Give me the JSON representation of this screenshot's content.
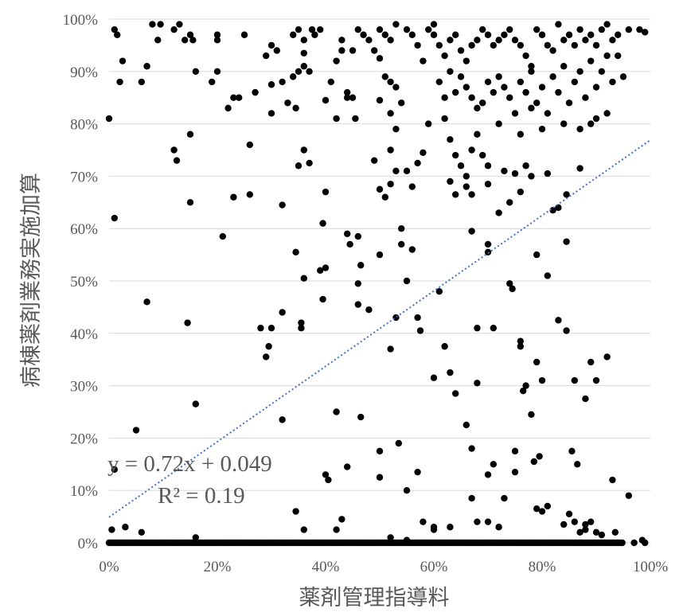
{
  "chart_data": {
    "type": "scatter",
    "xlabel": "薬剤管理指導料",
    "ylabel": "病棟薬剤業務実施加算",
    "xlim": [
      0,
      1
    ],
    "ylim": [
      0,
      1
    ],
    "x_ticks": [
      "0%",
      "20%",
      "40%",
      "60%",
      "80%",
      "100%"
    ],
    "y_ticks": [
      "0%",
      "10%",
      "20%",
      "30%",
      "40%",
      "50%",
      "60%",
      "70%",
      "80%",
      "90%",
      "100%"
    ],
    "grid": "horizontal",
    "colors": {
      "points": "#000000",
      "trendline": "#4472c4",
      "gridline": "#d9d9d9",
      "text": "#595959"
    },
    "trendline": {
      "slope": 0.72,
      "intercept": 0.049,
      "equation": "y = 0.72x + 0.049",
      "r2": "R² = 0.19"
    },
    "points": [
      [
        0.01,
        0.98
      ],
      [
        0.015,
        0.97
      ],
      [
        0.02,
        0.88
      ],
      [
        0.025,
        0.92
      ],
      [
        0.0,
        0.81
      ],
      [
        0.01,
        0.62
      ],
      [
        0.06,
        0.88
      ],
      [
        0.07,
        0.91
      ],
      [
        0.08,
        0.99
      ],
      [
        0.09,
        0.96
      ],
      [
        0.095,
        0.99
      ],
      [
        0.12,
        0.98
      ],
      [
        0.13,
        0.99
      ],
      [
        0.14,
        0.96
      ],
      [
        0.15,
        0.97
      ],
      [
        0.155,
        0.96
      ],
      [
        0.16,
        0.9
      ],
      [
        0.12,
        0.75
      ],
      [
        0.125,
        0.73
      ],
      [
        0.15,
        0.78
      ],
      [
        0.15,
        0.65
      ],
      [
        0.145,
        0.42
      ],
      [
        0.16,
        0.265
      ],
      [
        0.07,
        0.46
      ],
      [
        0.05,
        0.215
      ],
      [
        0.01,
        0.14
      ],
      [
        0.03,
        0.03
      ],
      [
        0.06,
        0.02
      ],
      [
        0.005,
        0.025
      ],
      [
        0.16,
        0.01
      ],
      [
        0.19,
        0.88
      ],
      [
        0.2,
        0.9
      ],
      [
        0.2,
        0.96
      ],
      [
        0.2,
        0.97
      ],
      [
        0.22,
        0.83
      ],
      [
        0.23,
        0.85
      ],
      [
        0.24,
        0.85
      ],
      [
        0.25,
        0.97
      ],
      [
        0.26,
        0.76
      ],
      [
        0.26,
        0.665
      ],
      [
        0.23,
        0.66
      ],
      [
        0.21,
        0.585
      ],
      [
        0.27,
        0.86
      ],
      [
        0.29,
        0.93
      ],
      [
        0.3,
        0.95
      ],
      [
        0.31,
        0.94
      ],
      [
        0.3,
        0.875
      ],
      [
        0.3,
        0.82
      ],
      [
        0.32,
        0.88
      ],
      [
        0.33,
        0.84
      ],
      [
        0.34,
        0.89
      ],
      [
        0.345,
        0.83
      ],
      [
        0.35,
        0.9
      ],
      [
        0.36,
        0.935
      ],
      [
        0.36,
        0.91
      ],
      [
        0.37,
        0.9
      ],
      [
        0.375,
        0.98
      ],
      [
        0.38,
        0.97
      ],
      [
        0.39,
        0.98
      ],
      [
        0.34,
        0.97
      ],
      [
        0.35,
        0.98
      ],
      [
        0.36,
        0.96
      ],
      [
        0.36,
        0.75
      ],
      [
        0.37,
        0.725
      ],
      [
        0.35,
        0.72
      ],
      [
        0.32,
        0.645
      ],
      [
        0.345,
        0.555
      ],
      [
        0.36,
        0.505
      ],
      [
        0.355,
        0.42
      ],
      [
        0.355,
        0.41
      ],
      [
        0.28,
        0.41
      ],
      [
        0.3,
        0.41
      ],
      [
        0.295,
        0.375
      ],
      [
        0.29,
        0.355
      ],
      [
        0.32,
        0.44
      ],
      [
        0.32,
        0.235
      ],
      [
        0.345,
        0.06
      ],
      [
        0.36,
        0.025
      ],
      [
        0.39,
        0.52
      ],
      [
        0.4,
        0.525
      ],
      [
        0.395,
        0.465
      ],
      [
        0.4,
        0.67
      ],
      [
        0.395,
        0.61
      ],
      [
        0.4,
        0.845
      ],
      [
        0.41,
        0.88
      ],
      [
        0.42,
        0.92
      ],
      [
        0.42,
        0.81
      ],
      [
        0.43,
        0.96
      ],
      [
        0.44,
        0.86
      ],
      [
        0.44,
        0.85
      ],
      [
        0.45,
        0.85
      ],
      [
        0.455,
        0.81
      ],
      [
        0.46,
        0.98
      ],
      [
        0.47,
        0.97
      ],
      [
        0.48,
        0.96
      ],
      [
        0.49,
        0.94
      ],
      [
        0.43,
        0.94
      ],
      [
        0.45,
        0.94
      ],
      [
        0.44,
        0.59
      ],
      [
        0.445,
        0.57
      ],
      [
        0.46,
        0.585
      ],
      [
        0.46,
        0.495
      ],
      [
        0.465,
        0.53
      ],
      [
        0.46,
        0.455
      ],
      [
        0.48,
        0.445
      ],
      [
        0.4,
        0.13
      ],
      [
        0.405,
        0.12
      ],
      [
        0.42,
        0.25
      ],
      [
        0.43,
        0.045
      ],
      [
        0.42,
        0.025
      ],
      [
        0.44,
        0.145
      ],
      [
        0.465,
        0.24
      ],
      [
        0.5,
        0.98
      ],
      [
        0.51,
        0.97
      ],
      [
        0.52,
        0.96
      ],
      [
        0.5,
        0.925
      ],
      [
        0.51,
        0.89
      ],
      [
        0.52,
        0.88
      ],
      [
        0.53,
        0.87
      ],
      [
        0.5,
        0.845
      ],
      [
        0.54,
        0.84
      ],
      [
        0.52,
        0.82
      ],
      [
        0.53,
        0.99
      ],
      [
        0.55,
        0.98
      ],
      [
        0.56,
        0.97
      ],
      [
        0.57,
        0.95
      ],
      [
        0.58,
        0.92
      ],
      [
        0.59,
        0.98
      ],
      [
        0.6,
        0.97
      ],
      [
        0.6,
        0.99
      ],
      [
        0.49,
        0.73
      ],
      [
        0.5,
        0.675
      ],
      [
        0.51,
        0.66
      ],
      [
        0.52,
        0.685
      ],
      [
        0.52,
        0.75
      ],
      [
        0.53,
        0.71
      ],
      [
        0.55,
        0.71
      ],
      [
        0.56,
        0.68
      ],
      [
        0.57,
        0.725
      ],
      [
        0.58,
        0.745
      ],
      [
        0.59,
        0.8
      ],
      [
        0.53,
        0.79
      ],
      [
        0.5,
        0.55
      ],
      [
        0.54,
        0.6
      ],
      [
        0.54,
        0.57
      ],
      [
        0.55,
        0.5
      ],
      [
        0.53,
        0.43
      ],
      [
        0.52,
        0.37
      ],
      [
        0.56,
        0.56
      ],
      [
        0.57,
        0.43
      ],
      [
        0.575,
        0.405
      ],
      [
        0.6,
        0.315
      ],
      [
        0.61,
        0.48
      ],
      [
        0.62,
        0.375
      ],
      [
        0.5,
        0.175
      ],
      [
        0.5,
        0.125
      ],
      [
        0.535,
        0.19
      ],
      [
        0.55,
        0.1
      ],
      [
        0.57,
        0.135
      ],
      [
        0.58,
        0.04
      ],
      [
        0.6,
        0.03
      ],
      [
        0.6,
        0.025
      ],
      [
        0.52,
        0.01
      ],
      [
        0.55,
        0.005
      ],
      [
        0.63,
        0.03
      ],
      [
        0.61,
        0.95
      ],
      [
        0.62,
        0.93
      ],
      [
        0.63,
        0.96
      ],
      [
        0.64,
        0.97
      ],
      [
        0.65,
        0.94
      ],
      [
        0.66,
        0.92
      ],
      [
        0.67,
        0.95
      ],
      [
        0.68,
        0.96
      ],
      [
        0.69,
        0.98
      ],
      [
        0.7,
        0.97
      ],
      [
        0.71,
        0.95
      ],
      [
        0.72,
        0.96
      ],
      [
        0.73,
        0.97
      ],
      [
        0.74,
        0.98
      ],
      [
        0.75,
        0.96
      ],
      [
        0.61,
        0.88
      ],
      [
        0.62,
        0.85
      ],
      [
        0.63,
        0.9
      ],
      [
        0.64,
        0.86
      ],
      [
        0.65,
        0.89
      ],
      [
        0.66,
        0.87
      ],
      [
        0.67,
        0.85
      ],
      [
        0.68,
        0.83
      ],
      [
        0.69,
        0.84
      ],
      [
        0.7,
        0.88
      ],
      [
        0.71,
        0.86
      ],
      [
        0.72,
        0.89
      ],
      [
        0.73,
        0.87
      ],
      [
        0.74,
        0.85
      ],
      [
        0.75,
        0.82
      ],
      [
        0.62,
        0.81
      ],
      [
        0.63,
        0.77
      ],
      [
        0.64,
        0.74
      ],
      [
        0.65,
        0.72
      ],
      [
        0.66,
        0.7
      ],
      [
        0.67,
        0.75
      ],
      [
        0.68,
        0.78
      ],
      [
        0.69,
        0.74
      ],
      [
        0.7,
        0.72
      ],
      [
        0.72,
        0.8
      ],
      [
        0.73,
        0.71
      ],
      [
        0.75,
        0.705
      ],
      [
        0.77,
        0.72
      ],
      [
        0.78,
        0.7
      ],
      [
        0.76,
        0.78
      ],
      [
        0.63,
        0.69
      ],
      [
        0.64,
        0.665
      ],
      [
        0.66,
        0.68
      ],
      [
        0.67,
        0.665
      ],
      [
        0.7,
        0.685
      ],
      [
        0.72,
        0.63
      ],
      [
        0.74,
        0.65
      ],
      [
        0.76,
        0.67
      ],
      [
        0.67,
        0.595
      ],
      [
        0.7,
        0.555
      ],
      [
        0.7,
        0.57
      ],
      [
        0.63,
        0.325
      ],
      [
        0.64,
        0.285
      ],
      [
        0.68,
        0.305
      ],
      [
        0.68,
        0.41
      ],
      [
        0.71,
        0.41
      ],
      [
        0.74,
        0.495
      ],
      [
        0.745,
        0.485
      ],
      [
        0.76,
        0.385
      ],
      [
        0.76,
        0.375
      ],
      [
        0.77,
        0.3
      ],
      [
        0.765,
        0.29
      ],
      [
        0.79,
        0.345
      ],
      [
        0.79,
        0.55
      ],
      [
        0.8,
        0.31
      ],
      [
        0.81,
        0.51
      ],
      [
        0.66,
        0.225
      ],
      [
        0.67,
        0.18
      ],
      [
        0.7,
        0.13
      ],
      [
        0.71,
        0.15
      ],
      [
        0.73,
        0.085
      ],
      [
        0.75,
        0.135
      ],
      [
        0.75,
        0.175
      ],
      [
        0.78,
        0.245
      ],
      [
        0.785,
        0.155
      ],
      [
        0.795,
        0.165
      ],
      [
        0.81,
        0.07
      ],
      [
        0.8,
        0.06
      ],
      [
        0.68,
        0.04
      ],
      [
        0.7,
        0.04
      ],
      [
        0.72,
        0.03
      ],
      [
        0.67,
        0.085
      ],
      [
        0.79,
        0.065
      ],
      [
        0.76,
        0.95
      ],
      [
        0.77,
        0.93
      ],
      [
        0.78,
        0.91
      ],
      [
        0.79,
        0.98
      ],
      [
        0.8,
        0.97
      ],
      [
        0.81,
        0.95
      ],
      [
        0.82,
        0.94
      ],
      [
        0.83,
        0.99
      ],
      [
        0.84,
        0.96
      ],
      [
        0.85,
        0.97
      ],
      [
        0.86,
        0.95
      ],
      [
        0.87,
        0.98
      ],
      [
        0.88,
        0.96
      ],
      [
        0.89,
        0.97
      ],
      [
        0.9,
        0.95
      ],
      [
        0.91,
        0.98
      ],
      [
        0.92,
        0.99
      ],
      [
        0.93,
        0.96
      ],
      [
        0.94,
        0.97
      ],
      [
        0.96,
        0.98
      ],
      [
        0.98,
        0.98
      ],
      [
        0.99,
        0.975
      ],
      [
        0.76,
        0.88
      ],
      [
        0.77,
        0.86
      ],
      [
        0.78,
        0.9
      ],
      [
        0.79,
        0.84
      ],
      [
        0.8,
        0.87
      ],
      [
        0.81,
        0.82
      ],
      [
        0.82,
        0.89
      ],
      [
        0.83,
        0.86
      ],
      [
        0.84,
        0.91
      ],
      [
        0.85,
        0.84
      ],
      [
        0.86,
        0.88
      ],
      [
        0.87,
        0.9
      ],
      [
        0.88,
        0.85
      ],
      [
        0.89,
        0.92
      ],
      [
        0.9,
        0.87
      ],
      [
        0.91,
        0.9
      ],
      [
        0.92,
        0.93
      ],
      [
        0.93,
        0.88
      ],
      [
        0.94,
        0.93
      ],
      [
        0.95,
        0.89
      ],
      [
        0.78,
        0.83
      ],
      [
        0.8,
        0.79
      ],
      [
        0.84,
        0.8
      ],
      [
        0.87,
        0.79
      ],
      [
        0.89,
        0.8
      ],
      [
        0.9,
        0.81
      ],
      [
        0.92,
        0.82
      ],
      [
        0.87,
        0.715
      ],
      [
        0.82,
        0.635
      ],
      [
        0.83,
        0.64
      ],
      [
        0.845,
        0.665
      ],
      [
        0.845,
        0.575
      ],
      [
        0.81,
        0.705
      ],
      [
        0.83,
        0.425
      ],
      [
        0.845,
        0.405
      ],
      [
        0.86,
        0.31
      ],
      [
        0.88,
        0.275
      ],
      [
        0.89,
        0.345
      ],
      [
        0.9,
        0.31
      ],
      [
        0.92,
        0.355
      ],
      [
        0.855,
        0.175
      ],
      [
        0.865,
        0.15
      ],
      [
        0.84,
        0.035
      ],
      [
        0.85,
        0.055
      ],
      [
        0.86,
        0.04
      ],
      [
        0.87,
        0.02
      ],
      [
        0.88,
        0.025
      ],
      [
        0.88,
        0.035
      ],
      [
        0.89,
        0.04
      ],
      [
        0.9,
        0.02
      ],
      [
        0.91,
        0.015
      ],
      [
        0.93,
        0.12
      ],
      [
        0.935,
        0.02
      ],
      [
        0.96,
        0.09
      ],
      [
        0.97,
        0.0
      ],
      [
        0.99,
        0.0
      ],
      [
        0.985,
        0.005
      ]
    ],
    "baseline_points_x_range": [
      0,
      0.95
    ],
    "baseline_points_y": 0.0
  }
}
